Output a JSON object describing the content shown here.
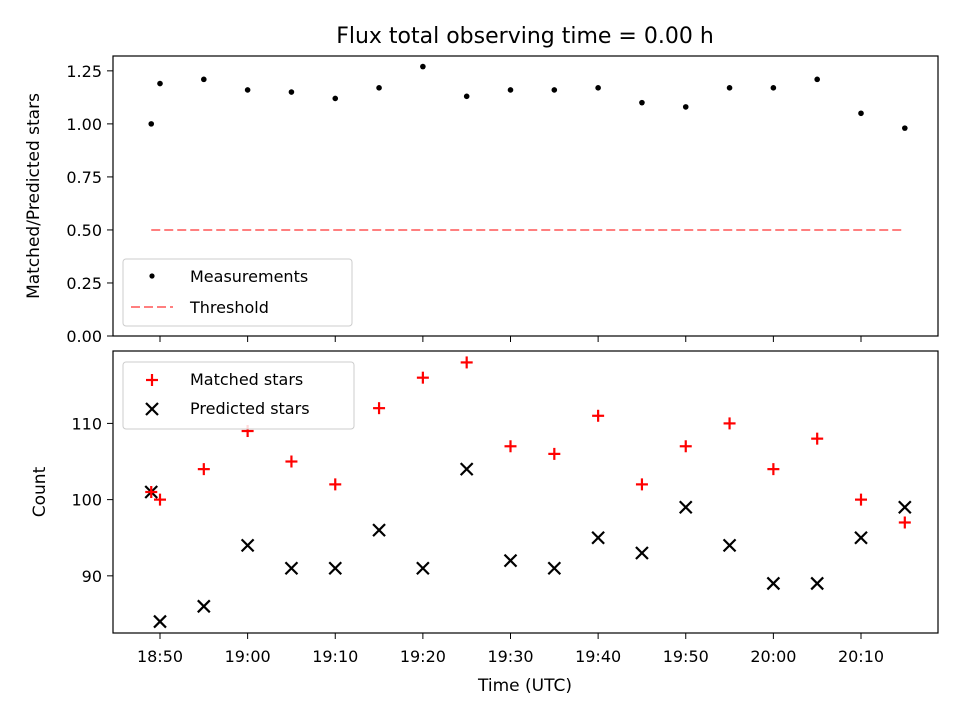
{
  "chart_data": [
    {
      "type": "scatter",
      "title": "Flux total observing time = 0.00 h",
      "xlabel": "",
      "ylabel": "Matched/Predicted stars",
      "ylim": [
        0.0,
        1.32
      ],
      "yticks": [
        0.0,
        0.25,
        0.5,
        0.75,
        1.0,
        1.25
      ],
      "ytick_labels": [
        "0.00",
        "0.25",
        "0.50",
        "0.75",
        "1.00",
        "1.25"
      ],
      "x_times": [
        "18:49",
        "18:50",
        "18:55",
        "19:00",
        "19:05",
        "19:10",
        "19:15",
        "19:20",
        "19:25",
        "19:30",
        "19:35",
        "19:40",
        "19:45",
        "19:50",
        "19:55",
        "20:00",
        "20:05",
        "20:10",
        "20:15"
      ],
      "series": [
        {
          "name": "Measurements",
          "marker": "dot",
          "color": "#000000",
          "values": [
            1.0,
            1.19,
            1.21,
            1.16,
            1.15,
            1.12,
            1.17,
            1.27,
            1.13,
            1.16,
            1.16,
            1.17,
            1.1,
            1.08,
            1.17,
            1.17,
            1.21,
            1.05,
            0.98
          ]
        },
        {
          "name": "Threshold",
          "marker": "dashed-line",
          "color": "#ff7f7f",
          "x": [
            "18:49",
            "20:15"
          ],
          "values": [
            0.5,
            0.5
          ]
        }
      ],
      "legend": "lower-left"
    },
    {
      "type": "scatter",
      "title": "",
      "xlabel": "Time (UTC)",
      "ylabel": "Count",
      "ylim": [
        82.5,
        119.5
      ],
      "yticks": [
        90,
        100,
        110
      ],
      "ytick_labels": [
        "90",
        "100",
        "110"
      ],
      "xticks": [
        "18:50",
        "19:00",
        "19:10",
        "19:20",
        "19:30",
        "19:40",
        "19:50",
        "20:00",
        "20:10"
      ],
      "x_times": [
        "18:49",
        "18:50",
        "18:55",
        "19:00",
        "19:05",
        "19:10",
        "19:15",
        "19:20",
        "19:25",
        "19:30",
        "19:35",
        "19:40",
        "19:45",
        "19:50",
        "19:55",
        "20:00",
        "20:05",
        "20:10",
        "20:15"
      ],
      "series": [
        {
          "name": "Matched stars",
          "marker": "plus",
          "color": "#ff0000",
          "values": [
            101,
            100,
            104,
            109,
            105,
            102,
            112,
            116,
            118,
            107,
            106,
            111,
            102,
            107,
            110,
            104,
            108,
            100,
            97
          ]
        },
        {
          "name": "Predicted stars",
          "marker": "x",
          "color": "#000000",
          "values": [
            101,
            84,
            86,
            94,
            91,
            91,
            96,
            91,
            104,
            92,
            91,
            95,
            93,
            99,
            94,
            89,
            89,
            95,
            99
          ]
        }
      ],
      "legend": "upper-left"
    }
  ]
}
